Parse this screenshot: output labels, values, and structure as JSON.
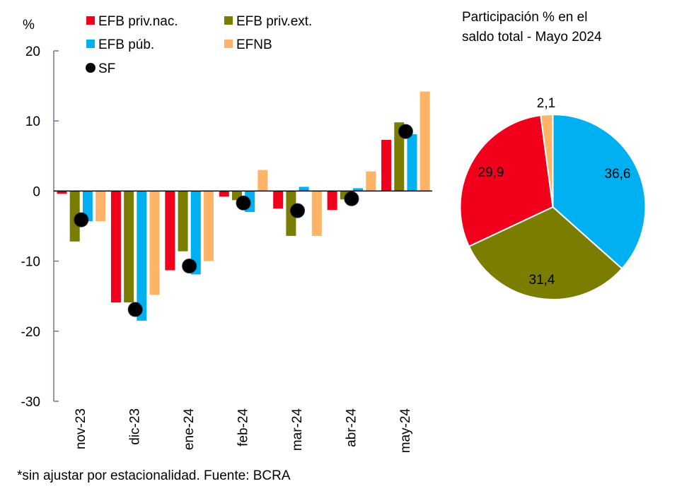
{
  "chart_data": [
    {
      "type": "bar",
      "ylabel": "%",
      "ylim": [
        -30,
        20
      ],
      "yticks": [
        20,
        10,
        0,
        -10,
        -20,
        -30
      ],
      "grid": false,
      "legend_position": "top",
      "categories": [
        "nov-23",
        "dic-23",
        "ene-24",
        "feb-24",
        "mar-24",
        "abr-24",
        "may-24"
      ],
      "series": [
        {
          "name": "EFB priv.nac.",
          "kind": "bar",
          "color": "#f0001a",
          "values": [
            -0.4,
            -15.9,
            -11.3,
            -0.8,
            -2.5,
            -2.7,
            7.3
          ]
        },
        {
          "name": "EFB priv.ext.",
          "kind": "bar",
          "color": "#7a7d00",
          "values": [
            -7.2,
            -15.9,
            -8.6,
            -1.3,
            -6.4,
            -1.2,
            9.8
          ]
        },
        {
          "name": "EFB púb.",
          "kind": "bar",
          "color": "#00b0f0",
          "values": [
            -4.3,
            -18.5,
            -11.9,
            -3.0,
            0.6,
            0.4,
            8.1
          ]
        },
        {
          "name": "EFNB",
          "kind": "bar",
          "color": "#ffb366",
          "values": [
            -4.3,
            -14.8,
            -10.0,
            3.0,
            -6.4,
            2.8,
            14.2
          ]
        },
        {
          "name": "SF",
          "kind": "marker",
          "color": "#000000",
          "values": [
            -4.1,
            -16.9,
            -10.7,
            -1.7,
            -2.8,
            -1.1,
            8.5
          ]
        }
      ]
    },
    {
      "type": "pie",
      "title_lines": [
        "Participación % en el",
        "saldo total - Mayo 2024"
      ],
      "slices": [
        {
          "name": "EFB púb.",
          "value": 36.6,
          "label": "36,6",
          "color": "#00b0f0"
        },
        {
          "name": "EFB priv.ext.",
          "value": 31.4,
          "label": "31,4",
          "color": "#7a7d00"
        },
        {
          "name": "EFB priv.nac.",
          "value": 29.9,
          "label": "29,9",
          "color": "#f0001a"
        },
        {
          "name": "EFNB",
          "value": 2.1,
          "label": "2,1",
          "color": "#ffb366"
        }
      ]
    }
  ],
  "footnote": "*sin ajustar por estacionalidad. Fuente: BCRA"
}
